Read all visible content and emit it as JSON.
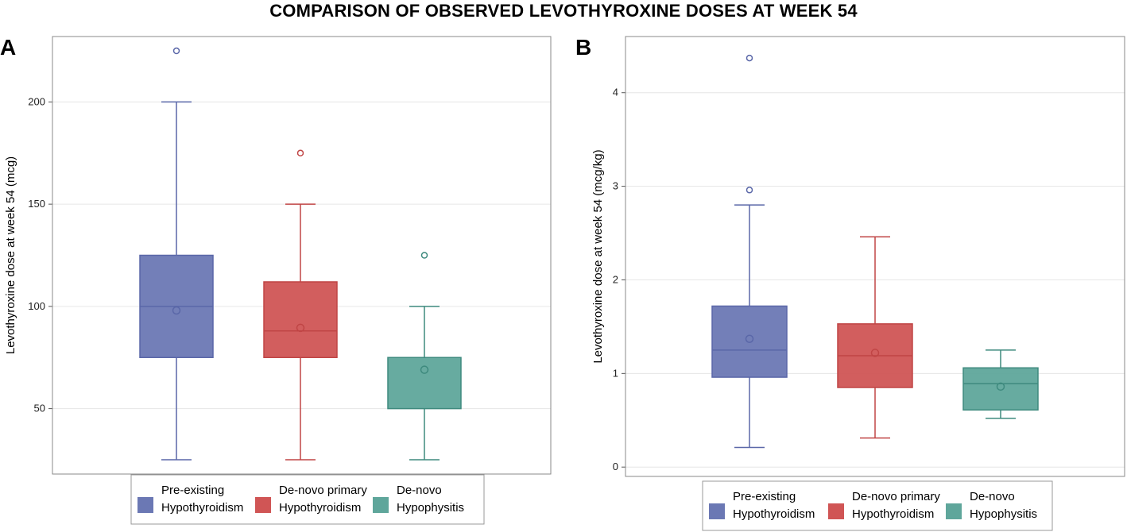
{
  "title": "COMPARISON OF OBSERVED LEVOTHYROXINE DOSES AT WEEK 54",
  "colors": {
    "pre": "#6b78b4",
    "pre_dark": "#5a67a8",
    "primary": "#d05555",
    "primary_dark": "#c04545",
    "hypo": "#5fa69b",
    "hypo_dark": "#3e8a7e",
    "grid": "#e6e6e6",
    "frame": "#888888"
  },
  "chart_data": [
    {
      "panel": "A",
      "type": "box",
      "ylabel": "Levothyroxine dose at week 54 (mcg)",
      "ylim": [
        18,
        232
      ],
      "yticks": [
        50,
        100,
        150,
        200
      ],
      "legend": [
        {
          "line1": "Pre-existing",
          "line2": "Hypothyroidism",
          "color_key": "pre"
        },
        {
          "line1": "De-novo primary",
          "line2": "Hypothyroidism",
          "color_key": "primary"
        },
        {
          "line1": "De-novo",
          "line2": "Hypophysitis",
          "color_key": "hypo"
        }
      ],
      "series": [
        {
          "name": "Pre-existing Hypothyroidism",
          "color_key": "pre",
          "whisker_low": 25,
          "q1": 75,
          "median": 100,
          "q3": 125,
          "whisker_high": 200,
          "mean": 98,
          "outliers": [
            225
          ]
        },
        {
          "name": "De-novo primary Hypothyroidism",
          "color_key": "primary",
          "whisker_low": 25,
          "q1": 75,
          "median": 88,
          "q3": 112,
          "whisker_high": 150,
          "mean": 89.5,
          "outliers": [
            175
          ]
        },
        {
          "name": "De-novo Hypophysitis",
          "color_key": "hypo",
          "whisker_low": 25,
          "q1": 50,
          "median": 75,
          "q3": 75,
          "whisker_high": 100,
          "mean": 69,
          "outliers": [
            125
          ]
        }
      ]
    },
    {
      "panel": "B",
      "type": "box",
      "ylabel": "Levothyroxine dose at week 54 (mcg/kg)",
      "ylim": [
        -0.1,
        4.6
      ],
      "yticks": [
        0,
        1,
        2,
        3,
        4
      ],
      "legend": [
        {
          "line1": "Pre-existing",
          "line2": "Hypothyroidism",
          "color_key": "pre"
        },
        {
          "line1": "De-novo primary",
          "line2": "Hypothyroidism",
          "color_key": "primary"
        },
        {
          "line1": "De-novo",
          "line2": "Hypophysitis",
          "color_key": "hypo"
        }
      ],
      "series": [
        {
          "name": "Pre-existing Hypothyroidism",
          "color_key": "pre",
          "whisker_low": 0.21,
          "q1": 0.96,
          "median": 1.25,
          "q3": 1.72,
          "whisker_high": 2.8,
          "mean": 1.37,
          "outliers": [
            2.96,
            4.37
          ]
        },
        {
          "name": "De-novo primary Hypothyroidism",
          "color_key": "primary",
          "whisker_low": 0.31,
          "q1": 0.85,
          "median": 1.19,
          "q3": 1.53,
          "whisker_high": 2.46,
          "mean": 1.22,
          "outliers": []
        },
        {
          "name": "De-novo Hypophysitis",
          "color_key": "hypo",
          "whisker_low": 0.52,
          "q1": 0.61,
          "median": 0.89,
          "q3": 1.06,
          "whisker_high": 1.25,
          "mean": 0.86,
          "outliers": []
        }
      ]
    }
  ]
}
